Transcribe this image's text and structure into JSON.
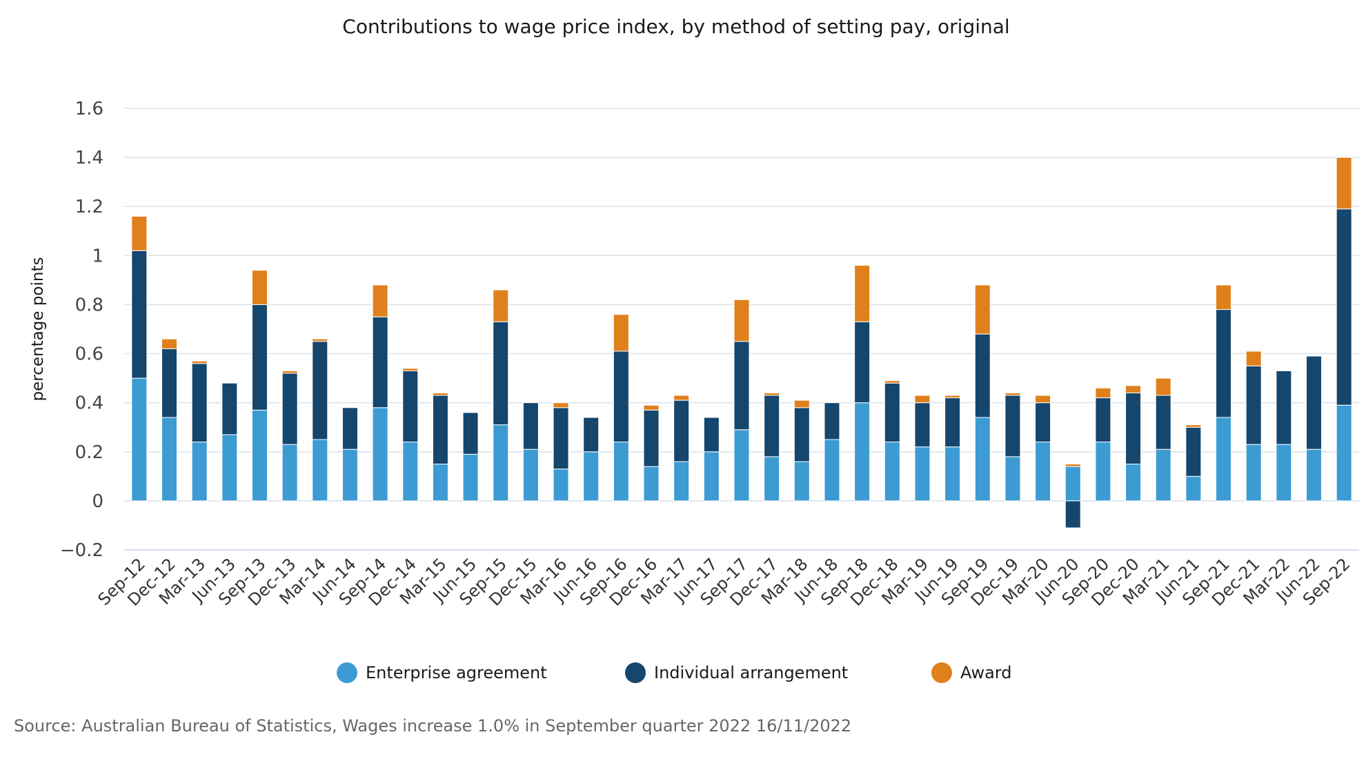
{
  "chart_data": {
    "type": "bar",
    "stacked": true,
    "title": "Contributions to wage price index, by method of setting pay, original",
    "ylabel": "percentage points",
    "xlabel": "",
    "ylim": [
      -0.2,
      1.6
    ],
    "yticks": [
      "1.6",
      "1.4",
      "1.2",
      "1",
      "0.8",
      "0.6",
      "0.4",
      "0.2",
      "0",
      "−0.2"
    ],
    "ytick_values": [
      1.6,
      1.4,
      1.2,
      1.0,
      0.8,
      0.6,
      0.4,
      0.2,
      0.0,
      -0.2
    ],
    "grid": true,
    "legend_position": "bottom",
    "categories": [
      "Sep-12",
      "Dec-12",
      "Mar-13",
      "Jun-13",
      "Sep-13",
      "Dec-13",
      "Mar-14",
      "Jun-14",
      "Sep-14",
      "Dec-14",
      "Mar-15",
      "Jun-15",
      "Sep-15",
      "Dec-15",
      "Mar-16",
      "Jun-16",
      "Sep-16",
      "Dec-16",
      "Mar-17",
      "Jun-17",
      "Sep-17",
      "Dec-17",
      "Mar-18",
      "Jun-18",
      "Sep-18",
      "Dec-18",
      "Mar-19",
      "Jun-19",
      "Sep-19",
      "Dec-19",
      "Mar-20",
      "Jun-20",
      "Sep-20",
      "Dec-20",
      "Mar-21",
      "Jun-21",
      "Sep-21",
      "Dec-21",
      "Mar-22",
      "Jun-22",
      "Sep-22"
    ],
    "series": [
      {
        "name": "Enterprise agreement",
        "color": "#3d9bd3",
        "values": [
          0.5,
          0.34,
          0.24,
          0.27,
          0.37,
          0.23,
          0.25,
          0.21,
          0.38,
          0.24,
          0.15,
          0.19,
          0.31,
          0.21,
          0.13,
          0.2,
          0.24,
          0.14,
          0.16,
          0.2,
          0.29,
          0.18,
          0.16,
          0.25,
          0.4,
          0.24,
          0.22,
          0.22,
          0.34,
          0.18,
          0.24,
          0.14,
          0.24,
          0.15,
          0.21,
          0.1,
          0.34,
          0.23,
          0.23,
          0.21,
          0.39
        ]
      },
      {
        "name": "Individual arrangement",
        "color": "#14466e",
        "values": [
          0.52,
          0.28,
          0.32,
          0.21,
          0.43,
          0.29,
          0.4,
          0.17,
          0.37,
          0.29,
          0.28,
          0.17,
          0.42,
          0.19,
          0.25,
          0.14,
          0.37,
          0.23,
          0.25,
          0.14,
          0.36,
          0.25,
          0.22,
          0.15,
          0.33,
          0.24,
          0.18,
          0.2,
          0.34,
          0.25,
          0.16,
          -0.11,
          0.18,
          0.29,
          0.22,
          0.2,
          0.44,
          0.32,
          0.3,
          0.38,
          0.8
        ]
      },
      {
        "name": "Award",
        "color": "#e0801c",
        "values": [
          0.14,
          0.04,
          0.01,
          0.0,
          0.14,
          0.01,
          0.01,
          0.0,
          0.13,
          0.01,
          0.01,
          0.0,
          0.13,
          0.0,
          0.02,
          0.0,
          0.15,
          0.02,
          0.02,
          0.0,
          0.17,
          0.01,
          0.03,
          0.0,
          0.23,
          0.01,
          0.03,
          0.01,
          0.2,
          0.01,
          0.03,
          0.01,
          0.04,
          0.03,
          0.07,
          0.01,
          0.1,
          0.06,
          0.0,
          0.0,
          0.21
        ]
      }
    ]
  },
  "source": "Source: Australian Bureau of Statistics, Wages increase 1.0% in September quarter 2022 16/11/2022"
}
